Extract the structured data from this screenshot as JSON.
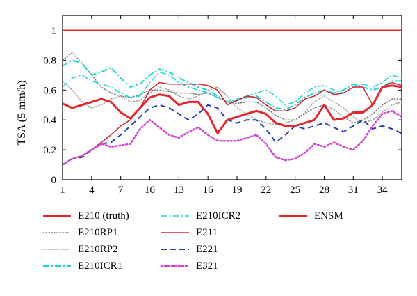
{
  "chart_data": {
    "type": "line",
    "title": "",
    "xlabel": "",
    "ylabel": "TSA (5 mm/h)",
    "xlim": [
      1,
      36
    ],
    "ylim": [
      0,
      1.1
    ],
    "x_ticks": [
      1,
      4,
      7,
      10,
      13,
      16,
      19,
      22,
      25,
      28,
      31,
      34
    ],
    "y_ticks": [
      0,
      0.2,
      0.4,
      0.6,
      0.8,
      1
    ],
    "y_tick_labels": [
      "0",
      "0.2",
      "0.4",
      "0.6",
      "0.8",
      "1"
    ],
    "grid": false,
    "legend_position": "bottom",
    "x": [
      1,
      2,
      3,
      4,
      5,
      6,
      7,
      8,
      9,
      10,
      11,
      12,
      13,
      14,
      15,
      16,
      17,
      18,
      19,
      20,
      21,
      22,
      23,
      24,
      25,
      26,
      27,
      28,
      29,
      30,
      31,
      32,
      33,
      34,
      35,
      36
    ],
    "series": [
      {
        "name": "E210 (truth)",
        "color": "#e8252a",
        "style": "solid",
        "width": 2,
        "values": [
          1,
          1,
          1,
          1,
          1,
          1,
          1,
          1,
          1,
          1,
          1,
          1,
          1,
          1,
          1,
          1,
          1,
          1,
          1,
          1,
          1,
          1,
          1,
          1,
          1,
          1,
          1,
          1,
          1,
          1,
          1,
          1,
          1,
          1,
          1,
          1
        ]
      },
      {
        "name": "E210RP1",
        "color": "#808080",
        "style": "dotted",
        "width": 1.5,
        "values": [
          0.8,
          0.85,
          0.78,
          0.7,
          0.62,
          0.58,
          0.56,
          0.55,
          0.57,
          0.6,
          0.6,
          0.59,
          0.58,
          0.58,
          0.57,
          0.58,
          0.55,
          0.52,
          0.51,
          0.52,
          0.52,
          0.48,
          0.43,
          0.4,
          0.4,
          0.44,
          0.48,
          0.5,
          0.47,
          0.42,
          0.38,
          0.4,
          0.44,
          0.5,
          0.54,
          0.54
        ]
      },
      {
        "name": "E210RP2",
        "color": "#a0a0a0",
        "style": "dotted",
        "width": 1.5,
        "values": [
          0.66,
          0.6,
          0.52,
          0.48,
          0.5,
          0.54,
          0.56,
          0.52,
          0.53,
          0.58,
          0.62,
          0.6,
          0.56,
          0.54,
          0.56,
          0.6,
          0.62,
          0.56,
          0.48,
          0.44,
          0.4,
          0.38,
          0.37,
          0.38,
          0.4,
          0.45,
          0.52,
          0.56,
          0.52,
          0.48,
          0.42,
          0.38,
          0.4,
          0.45,
          0.5,
          0.52
        ]
      },
      {
        "name": "E210ICR1",
        "color": "#19d7d7",
        "style": "dashdot",
        "width": 2,
        "values": [
          0.76,
          0.8,
          0.78,
          0.7,
          0.72,
          0.75,
          0.68,
          0.62,
          0.64,
          0.7,
          0.74,
          0.72,
          0.68,
          0.65,
          0.62,
          0.6,
          0.56,
          0.52,
          0.53,
          0.55,
          0.56,
          0.52,
          0.48,
          0.47,
          0.5,
          0.55,
          0.58,
          0.6,
          0.58,
          0.6,
          0.64,
          0.62,
          0.6,
          0.62,
          0.66,
          0.66
        ]
      },
      {
        "name": "E210ICR2",
        "color": "#19d7d7",
        "style": "dashdot",
        "width": 1.5,
        "values": [
          0.62,
          0.68,
          0.7,
          0.66,
          0.64,
          0.62,
          0.58,
          0.55,
          0.56,
          0.65,
          0.72,
          0.7,
          0.65,
          0.62,
          0.6,
          0.58,
          0.55,
          0.52,
          0.54,
          0.56,
          0.58,
          0.6,
          0.56,
          0.5,
          0.52,
          0.58,
          0.62,
          0.63,
          0.6,
          0.58,
          0.62,
          0.64,
          0.62,
          0.65,
          0.7,
          0.68
        ]
      },
      {
        "name": "E211",
        "color": "#d8232a",
        "style": "solid",
        "width": 1.5,
        "values": [
          0.1,
          0.14,
          0.16,
          0.2,
          0.25,
          0.3,
          0.36,
          0.4,
          0.48,
          0.6,
          0.65,
          0.64,
          0.64,
          0.64,
          0.64,
          0.63,
          0.6,
          0.5,
          0.53,
          0.56,
          0.55,
          0.5,
          0.46,
          0.46,
          0.48,
          0.54,
          0.56,
          0.6,
          0.57,
          0.58,
          0.62,
          0.62,
          0.5,
          0.62,
          0.65,
          0.63
        ]
      },
      {
        "name": "E221",
        "color": "#1f3fbf",
        "style": "dashed",
        "width": 2,
        "values": [
          0.1,
          0.14,
          0.15,
          0.2,
          0.24,
          0.25,
          0.3,
          0.36,
          0.42,
          0.48,
          0.5,
          0.48,
          0.44,
          0.4,
          0.44,
          0.5,
          0.48,
          0.4,
          0.38,
          0.4,
          0.4,
          0.34,
          0.25,
          0.3,
          0.36,
          0.34,
          0.36,
          0.38,
          0.35,
          0.32,
          0.36,
          0.4,
          0.34,
          0.36,
          0.34,
          0.31
        ]
      },
      {
        "name": "E321",
        "color": "#d43fd4",
        "style": "dotted",
        "width": 2.5,
        "values": [
          0.1,
          0.14,
          0.16,
          0.2,
          0.24,
          0.22,
          0.23,
          0.24,
          0.34,
          0.4,
          0.35,
          0.3,
          0.28,
          0.32,
          0.35,
          0.3,
          0.26,
          0.26,
          0.26,
          0.28,
          0.3,
          0.24,
          0.15,
          0.13,
          0.14,
          0.18,
          0.24,
          0.22,
          0.25,
          0.22,
          0.2,
          0.26,
          0.36,
          0.44,
          0.46,
          0.42
        ]
      },
      {
        "name": "ENSM",
        "color": "#e8252a",
        "style": "solid",
        "width": 3,
        "values": [
          0.51,
          0.48,
          0.5,
          0.52,
          0.54,
          0.52,
          0.45,
          0.41,
          0.48,
          0.55,
          0.57,
          0.56,
          0.5,
          0.52,
          0.52,
          0.44,
          0.31,
          0.4,
          0.42,
          0.44,
          0.46,
          0.44,
          0.38,
          0.36,
          0.36,
          0.38,
          0.4,
          0.5,
          0.4,
          0.41,
          0.45,
          0.45,
          0.5,
          0.62,
          0.63,
          0.62
        ]
      }
    ]
  }
}
